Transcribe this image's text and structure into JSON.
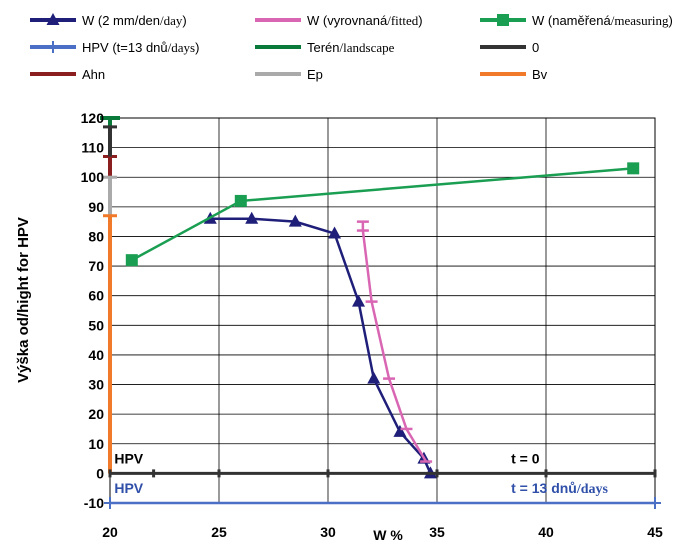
{
  "chart_data": {
    "type": "line",
    "xlabel": "W %",
    "ylabel": "Výška od/hight for HPV",
    "xlim": [
      20,
      45
    ],
    "ylim": [
      -10,
      120
    ],
    "xticks": [
      "20",
      "25",
      "30",
      "35",
      "40",
      "45"
    ],
    "yticks": [
      "-10",
      "0",
      "10",
      "20",
      "30",
      "40",
      "50",
      "60",
      "70",
      "80",
      "90",
      "100",
      "110",
      "120"
    ],
    "grid": true,
    "legend_position": "top",
    "legend": [
      {
        "key": "w2",
        "text": "W (2 mm/den",
        "text2": "/day",
        "text3": ")",
        "color": "#1f1f7a",
        "marker": "triangle"
      },
      {
        "key": "wfit",
        "text": "W (vyrovnaná",
        "text2": "/fitted",
        "text3": ")",
        "color": "#d966b3",
        "marker": "dash"
      },
      {
        "key": "wmeas",
        "text": "W (naměřená",
        "text2": "/measuring",
        "text3": ")",
        "color": "#1a9e52",
        "marker": "square"
      },
      {
        "key": "hpv",
        "text": "HPV (t=13 dnů",
        "text2": "/days",
        "text3": ")",
        "color": "#4a6fc4",
        "marker": "plus"
      },
      {
        "key": "teren",
        "text": "Terén",
        "text2": "/landscape",
        "text3": "",
        "color": "#0a7a3a",
        "marker": "none"
      },
      {
        "key": "zero",
        "text": "0",
        "text2": "",
        "text3": "",
        "color": "#333333",
        "marker": "none"
      },
      {
        "key": "ahn",
        "text": "Ahn",
        "text2": "",
        "text3": "",
        "color": "#8b1f1f",
        "marker": "none"
      },
      {
        "key": "ep",
        "text": "Ep",
        "text2": "",
        "text3": "",
        "color": "#aaaaaa",
        "marker": "none"
      },
      {
        "key": "bv",
        "text": "Bv",
        "text2": "",
        "text3": "",
        "color": "#f07a2a",
        "marker": "none"
      }
    ],
    "series": [
      {
        "key": "w2",
        "name": "W (2 mm/den/day)",
        "color": "#1f1f7a",
        "marker": "triangle",
        "x": [
          24.6,
          26.5,
          28.5,
          30.3,
          31.4,
          32.1,
          33.3,
          34.4,
          34.7
        ],
        "y": [
          86,
          86,
          85,
          81,
          58,
          32,
          14,
          5,
          0
        ]
      },
      {
        "key": "wfit",
        "name": "W (vyrovnaná/fitted)",
        "color": "#d966b3",
        "marker": "dash",
        "x": [
          31.6,
          31.6,
          32.0,
          32.8,
          33.6,
          34.5
        ],
        "y": [
          85,
          82,
          58,
          32,
          15,
          4
        ]
      },
      {
        "key": "wmeas",
        "name": "W (naměřená/measuring)",
        "color": "#1a9e52",
        "marker": "square",
        "x": [
          21.0,
          26.0,
          44.0
        ],
        "y": [
          72,
          92,
          103
        ]
      },
      {
        "key": "hpv",
        "name": "HPV (t=13 dnů/days)",
        "color": "#4a6fc4",
        "marker": "plus",
        "x": [
          20,
          45
        ],
        "y": [
          -10,
          -10
        ]
      },
      {
        "key": "zero",
        "name": "0",
        "color": "#333333",
        "marker": "bar",
        "x": [
          20,
          22,
          25,
          30,
          35,
          40,
          45
        ],
        "y": [
          0,
          0,
          0,
          0,
          0,
          0,
          0
        ]
      }
    ],
    "vertical_segments": [
      {
        "key": "teren",
        "x": 20,
        "y0": 117,
        "y1": 120,
        "color": "#0a7a3a"
      },
      {
        "key": "ahn",
        "x": 20,
        "y0": 100,
        "y1": 107,
        "color": "#8b1f1f"
      },
      {
        "key": "ep",
        "x": 20,
        "y0": 87,
        "y1": 100,
        "color": "#aaaaaa"
      },
      {
        "key": "bv",
        "x": 20,
        "y0": 0,
        "y1": 87,
        "color": "#f07a2a"
      },
      {
        "key": "teren_top",
        "x": 20,
        "y0": 107,
        "y1": 117,
        "color": "#333333"
      }
    ],
    "annotations": [
      {
        "key": "hpv0",
        "text": "HPV",
        "x": 20.2,
        "y": 5,
        "color": "#000000"
      },
      {
        "key": "t0",
        "text": "t  = 0",
        "x": 38.4,
        "y": 5,
        "color": "#000000"
      },
      {
        "key": "hpv13",
        "text": "HPV",
        "x": 20.2,
        "y": -5,
        "color": "#2f4fa8"
      },
      {
        "key": "t13",
        "text": "t = 13 dnů",
        "text2": "/days",
        "x": 38.4,
        "y": -5,
        "color": "#2f4fa8"
      }
    ]
  }
}
